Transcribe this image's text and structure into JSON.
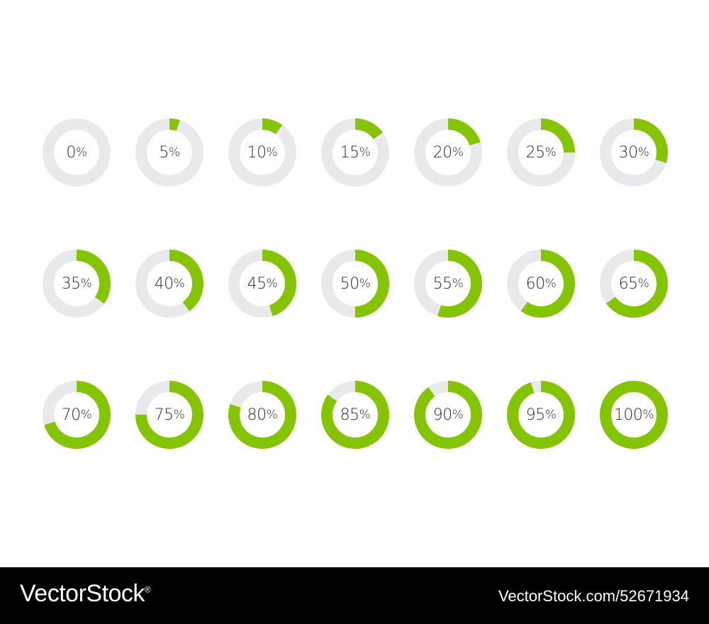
{
  "colors": {
    "progress": "#84c400",
    "track": "#e8e9ea",
    "label": "#2b2b2b"
  },
  "rings": [
    {
      "value": 0,
      "num": "0",
      "suffix": "%"
    },
    {
      "value": 5,
      "num": "5",
      "suffix": "%"
    },
    {
      "value": 10,
      "num": "10",
      "suffix": "%"
    },
    {
      "value": 15,
      "num": "15",
      "suffix": "%"
    },
    {
      "value": 20,
      "num": "20",
      "suffix": "%"
    },
    {
      "value": 25,
      "num": "25",
      "suffix": "%"
    },
    {
      "value": 30,
      "num": "30",
      "suffix": "%"
    },
    {
      "value": 35,
      "num": "35",
      "suffix": "%"
    },
    {
      "value": 40,
      "num": "40",
      "suffix": "%"
    },
    {
      "value": 45,
      "num": "45",
      "suffix": "%"
    },
    {
      "value": 50,
      "num": "50",
      "suffix": "%"
    },
    {
      "value": 55,
      "num": "55",
      "suffix": "%"
    },
    {
      "value": 60,
      "num": "60",
      "suffix": "%"
    },
    {
      "value": 65,
      "num": "65",
      "suffix": "%"
    },
    {
      "value": 70,
      "num": "70",
      "suffix": "%"
    },
    {
      "value": 75,
      "num": "75",
      "suffix": "%"
    },
    {
      "value": 80,
      "num": "80",
      "suffix": "%"
    },
    {
      "value": 85,
      "num": "85",
      "suffix": "%"
    },
    {
      "value": 90,
      "num": "90",
      "suffix": "%"
    },
    {
      "value": 95,
      "num": "95",
      "suffix": "%"
    },
    {
      "value": 100,
      "num": "100",
      "suffix": "%"
    }
  ],
  "footer": {
    "brand": "VectorStock",
    "brand_mark": "®",
    "reference": "VectorStock.com/52671934"
  }
}
